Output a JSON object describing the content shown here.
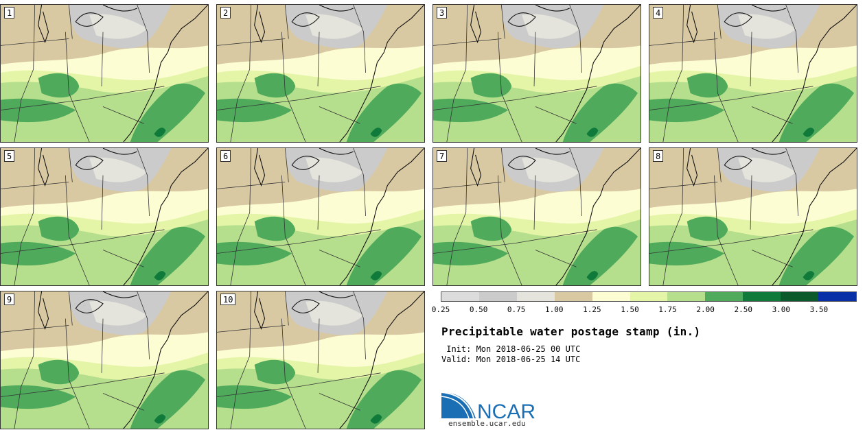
{
  "panels": [
    {
      "label": "1"
    },
    {
      "label": "2"
    },
    {
      "label": "3"
    },
    {
      "label": "4"
    },
    {
      "label": "5"
    },
    {
      "label": "6"
    },
    {
      "label": "7"
    },
    {
      "label": "8"
    },
    {
      "label": "9"
    },
    {
      "label": "10"
    }
  ],
  "legend": {
    "ticks": [
      "0.25",
      "0.50",
      "0.75",
      "1.00",
      "1.25",
      "1.50",
      "1.75",
      "2.00",
      "2.50",
      "3.00",
      "3.50"
    ],
    "colors": [
      "#dcdcdc",
      "#cbcbcb",
      "#e4e4dc",
      "#d9c9a3",
      "#fdfdd4",
      "#e5f5a8",
      "#b5df8c",
      "#4faa5c",
      "#0f7a3a",
      "#0a5a2c",
      "#0a30a8"
    ]
  },
  "title": "Precipitable water postage stamp (in.)",
  "init_line": " Init: Mon 2018-06-25 00 UTC",
  "valid_line": "Valid: Mon 2018-06-25 14 UTC",
  "logo": {
    "name": "NCAR",
    "url": "ensemble.ucar.edu",
    "color": "#1a6fb4"
  }
}
